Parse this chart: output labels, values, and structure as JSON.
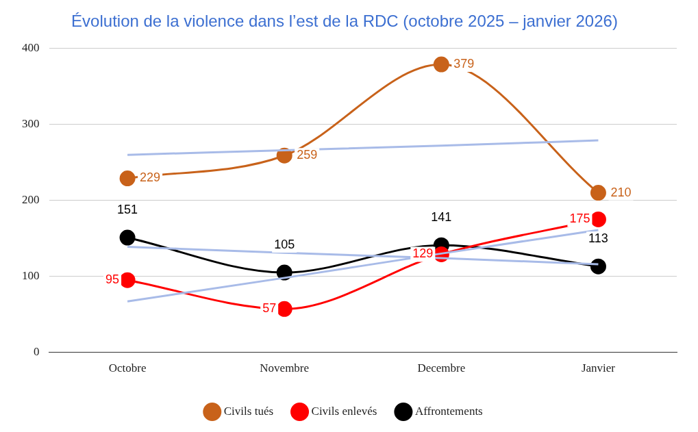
{
  "chart_data": {
    "type": "line",
    "title": "Évolution de la violence dans l’est de la RDC (octobre 2025 – janvier 2026)",
    "categories": [
      "Octobre",
      "Novembre",
      "Decembre",
      "Janvier"
    ],
    "series": [
      {
        "name": "Civils tués",
        "color": "#c8621a",
        "values": [
          229,
          259,
          379,
          210
        ]
      },
      {
        "name": "Civils enlevés",
        "color": "#ff0000",
        "values": [
          95,
          57,
          129,
          175
        ]
      },
      {
        "name": "Affrontements",
        "color": "#000000",
        "values": [
          151,
          105,
          141,
          113
        ]
      },
      {
        "color": "#a8bbe8",
        "marker": "none",
        "values": [
          260,
          266,
          272,
          279
        ],
        "value_labels": [
          null,
          null,
          null,
          null
        ]
      },
      {
        "color": "#a8bbe8",
        "marker": "none",
        "values": [
          67,
          98,
          130,
          161
        ],
        "value_labels": [
          null,
          null,
          null,
          null
        ]
      },
      {
        "color": "#a8bbe8",
        "marker": "none",
        "values": [
          139,
          131,
          124,
          116
        ],
        "value_labels": [
          null,
          null,
          null,
          null
        ]
      }
    ],
    "ylim": [
      0,
      400
    ],
    "yticks": [
      0,
      100,
      200,
      300,
      400
    ],
    "grid": "y",
    "legend": "bottom",
    "marker": "circle",
    "line_style": "solid",
    "data_labels": true
  }
}
